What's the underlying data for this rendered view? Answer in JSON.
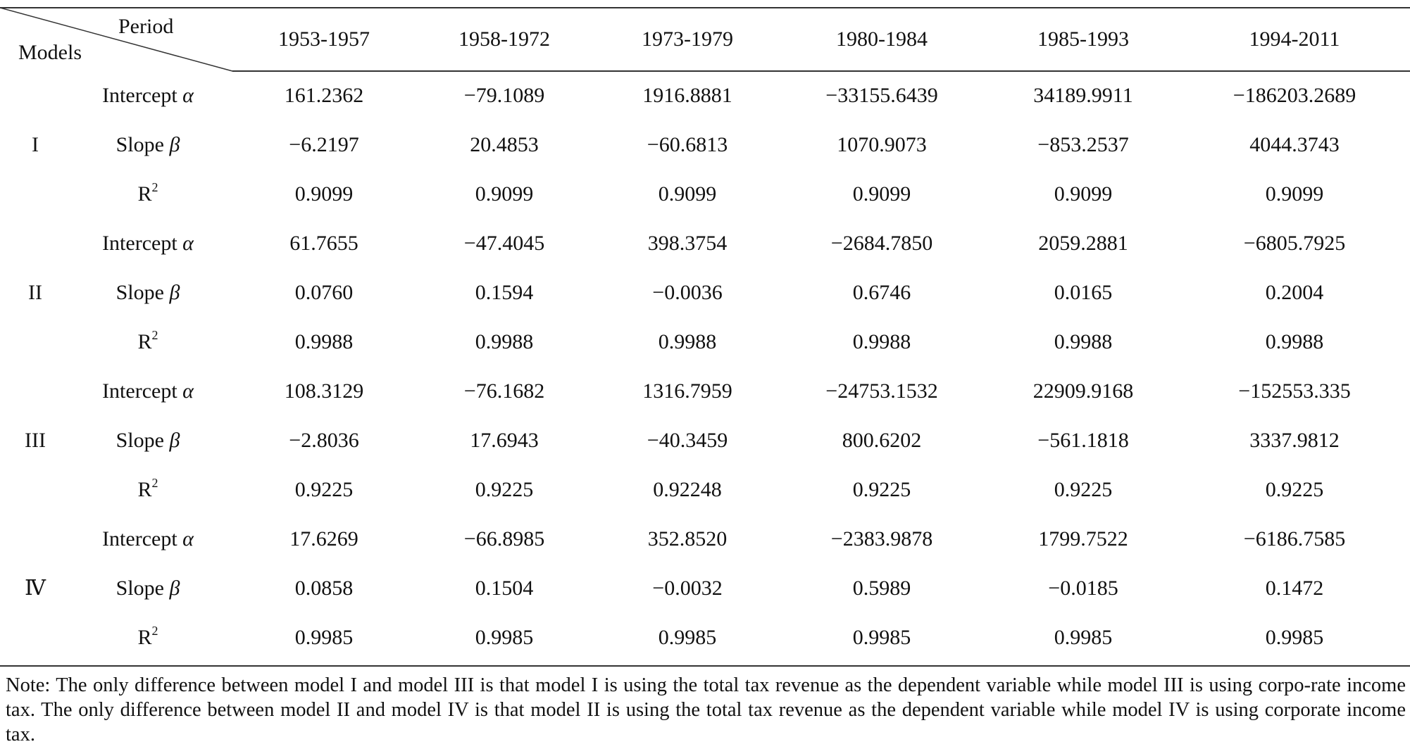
{
  "table": {
    "corner": {
      "period_label": "Period",
      "models_label": "Models"
    },
    "periods": [
      "1953-1957",
      "1958-1972",
      "1973-1979",
      "1980-1984",
      "1985-1993",
      "1994-2011"
    ],
    "param_labels": {
      "intercept": "Intercept",
      "intercept_symbol": "α",
      "slope": "Slope",
      "slope_symbol": "β",
      "r2": "R",
      "r2_sup": "2"
    },
    "models": [
      {
        "name": "I",
        "intercept": [
          "161.2362",
          "−79.1089",
          "1916.8881",
          "−33155.6439",
          "34189.9911",
          "−186203.2689"
        ],
        "slope": [
          "−6.2197",
          "20.4853",
          "−60.6813",
          "1070.9073",
          "−853.2537",
          "4044.3743"
        ],
        "r2": [
          "0.9099",
          "0.9099",
          "0.9099",
          "0.9099",
          "0.9099",
          "0.9099"
        ]
      },
      {
        "name": "II",
        "intercept": [
          "61.7655",
          "−47.4045",
          "398.3754",
          "−2684.7850",
          "2059.2881",
          "−6805.7925"
        ],
        "slope": [
          "0.0760",
          "0.1594",
          "−0.0036",
          "0.6746",
          "0.0165",
          "0.2004"
        ],
        "r2": [
          "0.9988",
          "0.9988",
          "0.9988",
          "0.9988",
          "0.9988",
          "0.9988"
        ]
      },
      {
        "name": "III",
        "intercept": [
          "108.3129",
          "−76.1682",
          "1316.7959",
          "−24753.1532",
          "22909.9168",
          "−152553.335"
        ],
        "slope": [
          "−2.8036",
          "17.6943",
          "−40.3459",
          "800.6202",
          "−561.1818",
          "3337.9812"
        ],
        "r2": [
          "0.9225",
          "0.9225",
          "0.92248",
          "0.9225",
          "0.9225",
          "0.9225"
        ]
      },
      {
        "name": "Ⅳ",
        "intercept": [
          "17.6269",
          "−66.8985",
          "352.8520",
          "−2383.9878",
          "1799.7522",
          "−6186.7585"
        ],
        "slope": [
          "0.0858",
          "0.1504",
          "−0.0032",
          "0.5989",
          "−0.0185",
          "0.1472"
        ],
        "r2": [
          "0.9985",
          "0.9985",
          "0.9985",
          "0.9985",
          "0.9985",
          "0.9985"
        ]
      }
    ],
    "note": "Note: The only difference between model I and model III is that model I is using the total tax revenue as the dependent variable while model III is using corpo-rate income tax. The only difference between model II and model IV is that model II is using the total tax revenue as the dependent variable while model IV is using corporate income tax."
  }
}
